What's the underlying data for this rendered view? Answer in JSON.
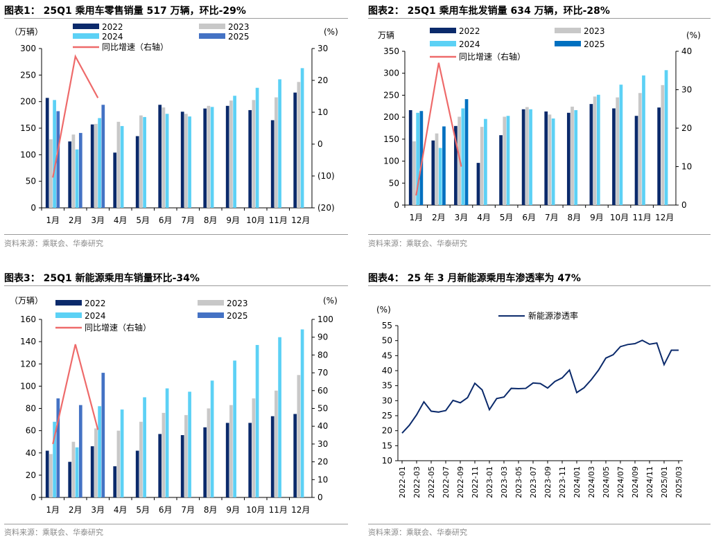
{
  "palette": {
    "s2022": "#0b2a6b",
    "s2023": "#c8c8c8",
    "s2024": "#5cd1f5",
    "s2025a": "#4472c4",
    "s2025b": "#0070c0",
    "yoy": "#ee6a6a",
    "line": "#0b2a6b"
  },
  "panels": [
    {
      "title": "图表1：  25Q1 乘用车零售销量 517 万辆，环比-29%",
      "source": "资料来源：乘联会、华泰研究"
    },
    {
      "title": "图表2：  25Q1 乘用车批发销量 634 万辆，环比-28%",
      "source": "资料来源：乘联会、华泰研究"
    },
    {
      "title": "图表3：  25Q1 新能源乘用车销量环比-34%",
      "source": "资料来源：乘联会、华泰研究"
    },
    {
      "title": "图表4：  25 年 3 月新能源乘用车渗透率为 47%",
      "source": "资料来源：乘联会、华泰研究"
    }
  ],
  "chart_data": [
    {
      "type": "bar",
      "title": "25Q1 乘用车零售销量 517 万辆，环比-29%",
      "ylabel": "（万辆）",
      "y2label": "(%)",
      "ylim": [
        0,
        300
      ],
      "yticks": [
        0,
        50,
        100,
        150,
        200,
        250,
        300
      ],
      "y2lim": [
        -20,
        30
      ],
      "y2ticks": [
        -20,
        -10,
        0,
        10,
        20,
        30
      ],
      "y2ticklabels": [
        "(20)",
        "(10)",
        "0",
        "10",
        "20",
        "30"
      ],
      "categories": [
        "1月",
        "2月",
        "3月",
        "4月",
        "5月",
        "6月",
        "7月",
        "8月",
        "9月",
        "10月",
        "11月",
        "12月"
      ],
      "legend_layout": "two-columns",
      "series": [
        {
          "name": "2022",
          "values": [
            207,
            125,
            157,
            104,
            135,
            194,
            181,
            187,
            192,
            184,
            165,
            217
          ]
        },
        {
          "name": "2023",
          "values": [
            129,
            138,
            158,
            162,
            174,
            189,
            177,
            192,
            202,
            203,
            208,
            237
          ]
        },
        {
          "name": "2024",
          "values": [
            203,
            110,
            169,
            154,
            171,
            177,
            172,
            190,
            211,
            226,
            242,
            263
          ]
        },
        {
          "name": "2025",
          "values": [
            182,
            141,
            194,
            null,
            null,
            null,
            null,
            null,
            null,
            null,
            null,
            null
          ]
        }
      ],
      "yoy": {
        "name": "同比增速（右轴）",
        "values": [
          -10.5,
          27.5,
          14.5
        ]
      }
    },
    {
      "type": "bar",
      "title": "25Q1 乘用车批发销量 634 万辆，环比-28%",
      "ylabel": "万辆",
      "y2label": "(%)",
      "ylim": [
        0,
        350
      ],
      "yticks": [
        0,
        50,
        100,
        150,
        200,
        250,
        300,
        350
      ],
      "y2lim": [
        0,
        40
      ],
      "y2ticks": [
        0,
        10,
        20,
        30,
        40
      ],
      "y2ticklabels": [
        "0",
        "10",
        "20",
        "30",
        "40"
      ],
      "categories": [
        "1月",
        "2月",
        "3月",
        "4月",
        "5月",
        "6月",
        "7月",
        "8月",
        "9月",
        "10月",
        "11月",
        "12月"
      ],
      "legend_layout": "two-columns",
      "series": [
        {
          "name": "2022",
          "values": [
            216,
            147,
            180,
            96,
            159,
            218,
            213,
            210,
            230,
            220,
            203,
            222
          ]
        },
        {
          "name": "2023",
          "values": [
            145,
            163,
            201,
            178,
            201,
            223,
            206,
            224,
            247,
            245,
            255,
            273
          ]
        },
        {
          "name": "2024",
          "values": [
            210,
            130,
            220,
            196,
            203,
            218,
            197,
            216,
            251,
            274,
            295,
            307
          ]
        },
        {
          "name": "2025",
          "values": [
            214,
            179,
            241,
            null,
            null,
            null,
            null,
            null,
            null,
            null,
            null,
            null
          ]
        }
      ],
      "yoy": {
        "name": "同比增速（右轴）",
        "values": [
          2.5,
          37.0,
          10.0
        ]
      }
    },
    {
      "type": "bar",
      "title": "25Q1 新能源乘用车销量环比-34%",
      "ylabel": "（万辆）",
      "y2label": "(%)",
      "ylim": [
        0,
        160
      ],
      "yticks": [
        0,
        20,
        40,
        60,
        80,
        100,
        120,
        140,
        160
      ],
      "y2lim": [
        0,
        100
      ],
      "y2ticks": [
        0,
        10,
        20,
        30,
        40,
        50,
        60,
        70,
        80,
        90,
        100
      ],
      "y2ticklabels": [
        "0",
        "10",
        "20",
        "30",
        "40",
        "50",
        "60",
        "70",
        "80",
        "90",
        "100"
      ],
      "categories": [
        "1月",
        "2月",
        "3月",
        "4月",
        "5月",
        "6月",
        "7月",
        "8月",
        "9月",
        "10月",
        "11月",
        "12月"
      ],
      "legend_layout": "two-columns",
      "series": [
        {
          "name": "2022",
          "values": [
            42,
            32,
            46,
            28,
            42,
            57,
            56,
            63,
            67,
            67,
            73,
            75
          ]
        },
        {
          "name": "2023",
          "values": [
            39,
            50,
            62,
            60,
            68,
            76,
            74,
            80,
            83,
            89,
            96,
            110
          ]
        },
        {
          "name": "2024",
          "values": [
            68,
            45,
            82,
            79,
            90,
            98,
            95,
            105,
            123,
            137,
            144,
            151
          ]
        },
        {
          "name": "2025",
          "values": [
            89,
            83,
            112,
            null,
            null,
            null,
            null,
            null,
            null,
            null,
            null,
            null
          ]
        }
      ],
      "yoy": {
        "name": "同比增速（右轴）",
        "values": [
          30,
          86,
          38
        ]
      }
    },
    {
      "type": "line",
      "title": "25 年 3 月新能源乘用车渗透率为 47%",
      "ylabel": "(%)",
      "ylim": [
        10,
        55
      ],
      "yticks": [
        10,
        15,
        20,
        25,
        30,
        35,
        40,
        45,
        50,
        55
      ],
      "x": [
        "2022-01",
        "2022-02",
        "2022-03",
        "2022-04",
        "2022-05",
        "2022-06",
        "2022-07",
        "2022-08",
        "2022-09",
        "2022-10",
        "2022-11",
        "2022-12",
        "2023-01",
        "2023-02",
        "2023-03",
        "2023-04",
        "2023-05",
        "2023-06",
        "2023-07",
        "2023-08",
        "2023-09",
        "2023-10",
        "2023-11",
        "2023-12",
        "2024/01",
        "2024/02",
        "2024/03",
        "2024/04",
        "2024/05",
        "2024/06",
        "2024/07",
        "2024/08",
        "2024/09",
        "2024/10",
        "2024/11",
        "2024/12",
        "2025/01",
        "2025/02",
        "2025/03"
      ],
      "xticklabels": [
        "2022-01",
        "2022-03",
        "2022-05",
        "2022-07",
        "2022-09",
        "2022-11",
        "2023-01",
        "2023-03",
        "2023-05",
        "2023-07",
        "2023-09",
        "2023-11",
        "2024/01",
        "2024/03",
        "2024/05",
        "2024/07",
        "2024/09",
        "2024/11",
        "2025/01",
        "2025/03"
      ],
      "series": [
        {
          "name": "新能源渗透率",
          "values": [
            19.2,
            21.8,
            25.3,
            29.6,
            26.5,
            26.2,
            26.7,
            30.1,
            29.3,
            31.0,
            35.8,
            33.6,
            27.0,
            30.7,
            31.2,
            34.1,
            34.0,
            34.1,
            35.9,
            35.7,
            34.2,
            36.4,
            37.6,
            40.2,
            32.7,
            34.3,
            37.0,
            40.2,
            44.2,
            45.3,
            48.0,
            48.7,
            49.0,
            50.1,
            48.8,
            49.2,
            42.0,
            46.8,
            46.8
          ]
        }
      ]
    }
  ]
}
